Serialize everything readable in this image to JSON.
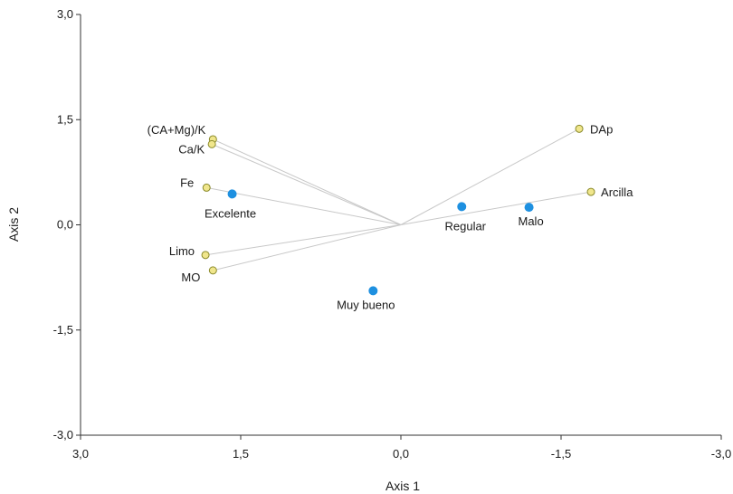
{
  "chart_data": {
    "type": "scatter",
    "subtype": "biplot",
    "title": "",
    "xlabel": "Axis  1",
    "ylabel": "Axis  2",
    "xlim": [
      3.0,
      -3.0
    ],
    "ylim": [
      -3.0,
      3.0
    ],
    "x_reversed": true,
    "grid": false,
    "x_ticks": [
      3.0,
      1.5,
      0.0,
      -1.5,
      -3.0
    ],
    "x_tick_labels": [
      "3,0",
      "1,5",
      "0,0",
      "-1,5",
      "-3,0"
    ],
    "y_ticks": [
      3.0,
      1.5,
      0.0,
      -1.5,
      -3.0
    ],
    "y_tick_labels": [
      "3,0",
      "1,5",
      "0,0",
      "-1,5",
      "-3,0"
    ],
    "variables": {
      "marker_color": "#f0e68c",
      "marker_edge": "#8a8a2a",
      "vector_color": "#c8c8c8",
      "points": [
        {
          "label": "(CA+Mg)/K",
          "x": 1.76,
          "y": 1.22
        },
        {
          "label": "Ca/K",
          "x": 1.77,
          "y": 1.15
        },
        {
          "label": "Fe",
          "x": 1.82,
          "y": 0.53
        },
        {
          "label": "Limo",
          "x": 1.83,
          "y": -0.43
        },
        {
          "label": "MO",
          "x": 1.76,
          "y": -0.65
        },
        {
          "label": "DAp",
          "x": -1.67,
          "y": 1.37
        },
        {
          "label": "Arcilla",
          "x": -1.78,
          "y": 0.47
        }
      ]
    },
    "groups": {
      "marker_color": "#1e90e0",
      "points": [
        {
          "label": "Excelente",
          "x": 1.58,
          "y": 0.44
        },
        {
          "label": "Regular",
          "x": -0.57,
          "y": 0.26
        },
        {
          "label": "Malo",
          "x": -1.2,
          "y": 0.25
        },
        {
          "label": "Muy bueno",
          "x": 0.26,
          "y": -0.94
        }
      ]
    }
  }
}
